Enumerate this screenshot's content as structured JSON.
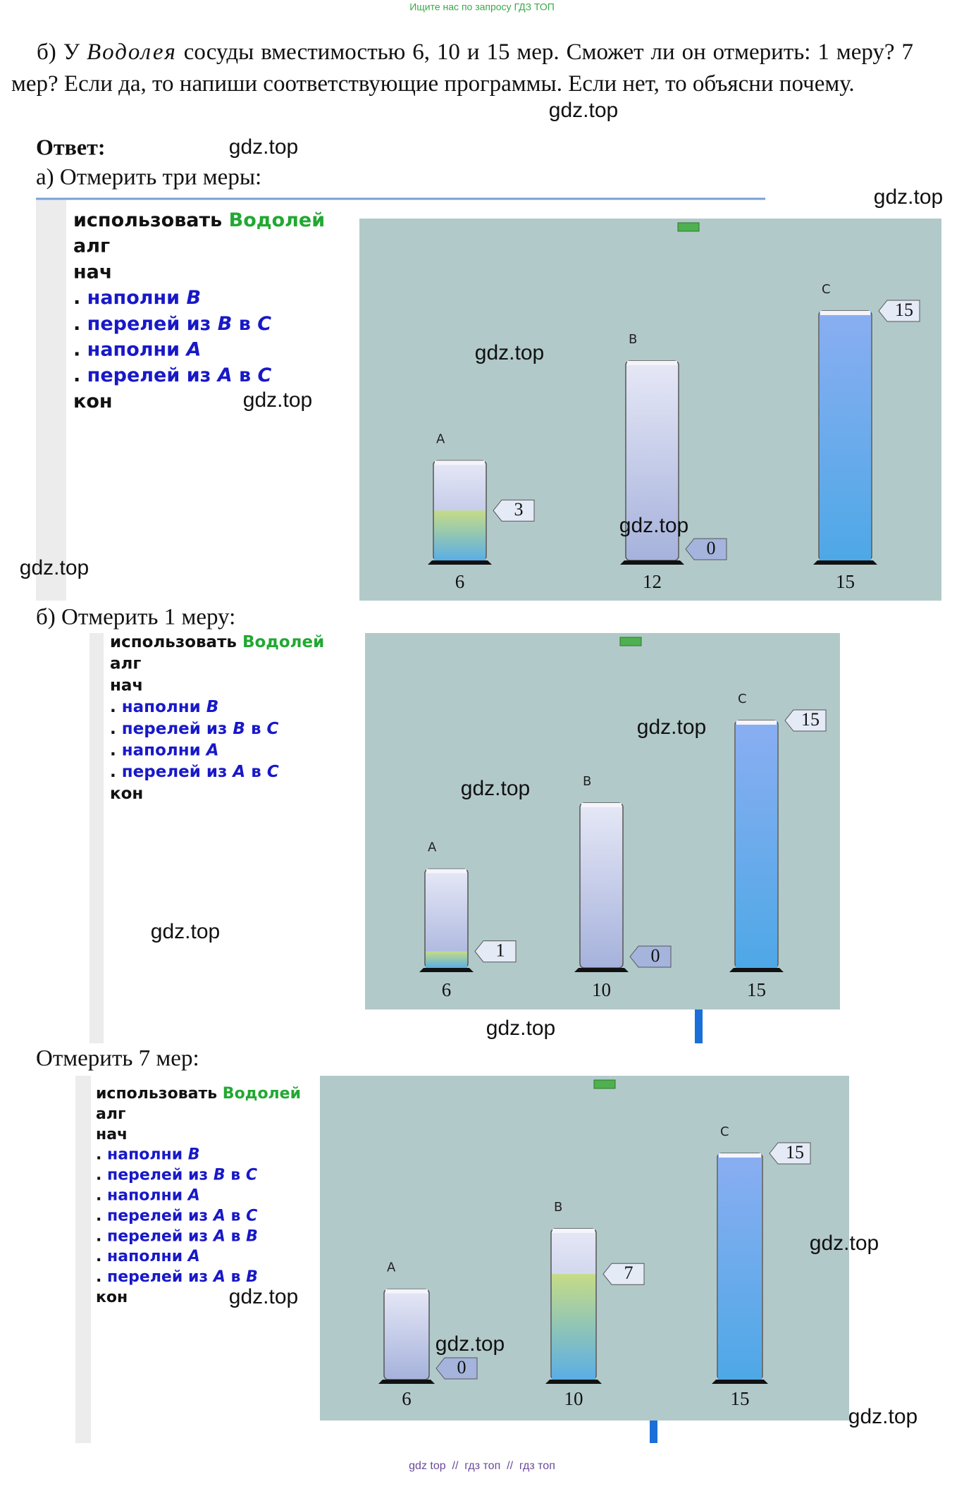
{
  "header": {
    "note": "Ищите нас по запросу ГДЗ ТОП"
  },
  "task": {
    "prefix": "б) У",
    "name": "Водолея",
    "text": "сосуды вместимостью 6, 10 и 15 мер. Сможет ли он отмерить: 1 меру? 7 мер? Если да, то напиши соответствующие программы. Если нет, то объясни почему."
  },
  "answer_label": "Ответ:",
  "sections": [
    {
      "title": "а) Отмерить три меры:",
      "code": [
        [
          "использовать",
          "Водолей"
        ],
        [
          "алг"
        ],
        [
          "нач"
        ],
        [
          ".",
          "наполни",
          "B"
        ],
        [
          ".",
          "перелей",
          "из",
          "B",
          "в",
          "C"
        ],
        [
          ".",
          "наполни",
          "A"
        ],
        [
          ".",
          "перелей",
          "из",
          "A",
          "в",
          "C"
        ],
        [
          "кон"
        ]
      ],
      "vessels": [
        {
          "label": "A",
          "capacity": 6,
          "amount": 3
        },
        {
          "label": "B",
          "capacity": 12,
          "amount": 0
        },
        {
          "label": "C",
          "capacity": 15,
          "amount": 15
        }
      ]
    },
    {
      "title": "б) Отмерить 1 меру:",
      "code": [
        [
          "использовать",
          "Водолей"
        ],
        [
          "алг"
        ],
        [
          "нач"
        ],
        [
          ".",
          "наполни",
          "B"
        ],
        [
          ".",
          "перелей",
          "из",
          "B",
          "в",
          "C"
        ],
        [
          ".",
          "наполни",
          "A"
        ],
        [
          ".",
          "перелей",
          "из",
          "A",
          "в",
          "C"
        ],
        [
          "кон"
        ]
      ],
      "vessels": [
        {
          "label": "A",
          "capacity": 6,
          "amount": 1
        },
        {
          "label": "B",
          "capacity": 10,
          "amount": 0
        },
        {
          "label": "C",
          "capacity": 15,
          "amount": 15
        }
      ]
    },
    {
      "title": "Отмерить 7 мер:",
      "code": [
        [
          "использовать",
          "Водолей"
        ],
        [
          "алг"
        ],
        [
          "нач"
        ],
        [
          ".",
          "наполни",
          "B"
        ],
        [
          ".",
          "перелей",
          "из",
          "B",
          "в",
          "C"
        ],
        [
          ".",
          "наполни",
          "A"
        ],
        [
          ".",
          "перелей",
          "из",
          "A",
          "в",
          "C"
        ],
        [
          ".",
          "перелей",
          "из",
          "A",
          "в",
          "B"
        ],
        [
          ".",
          "наполни",
          "A"
        ],
        [
          ".",
          "перелей",
          "из",
          "A",
          "в",
          "B"
        ],
        [
          "кон"
        ]
      ],
      "vessels": [
        {
          "label": "A",
          "capacity": 6,
          "amount": 0
        },
        {
          "label": "B",
          "capacity": 10,
          "amount": 7
        },
        {
          "label": "C",
          "capacity": 15,
          "amount": 15
        }
      ]
    }
  ],
  "watermarks": [
    "gdz.top",
    "gdz.top",
    "gdz.top",
    "gdz.top",
    "gdz.top",
    "gdz.top",
    "gdz.top",
    "gdz.top",
    "gdz.top",
    "gdz.top",
    "gdz.top",
    "gdz.top",
    "gdz.top",
    "gdz.top",
    "gdz.top"
  ],
  "footer": "gdz top  //  гдз топ  //  гдз топ"
}
